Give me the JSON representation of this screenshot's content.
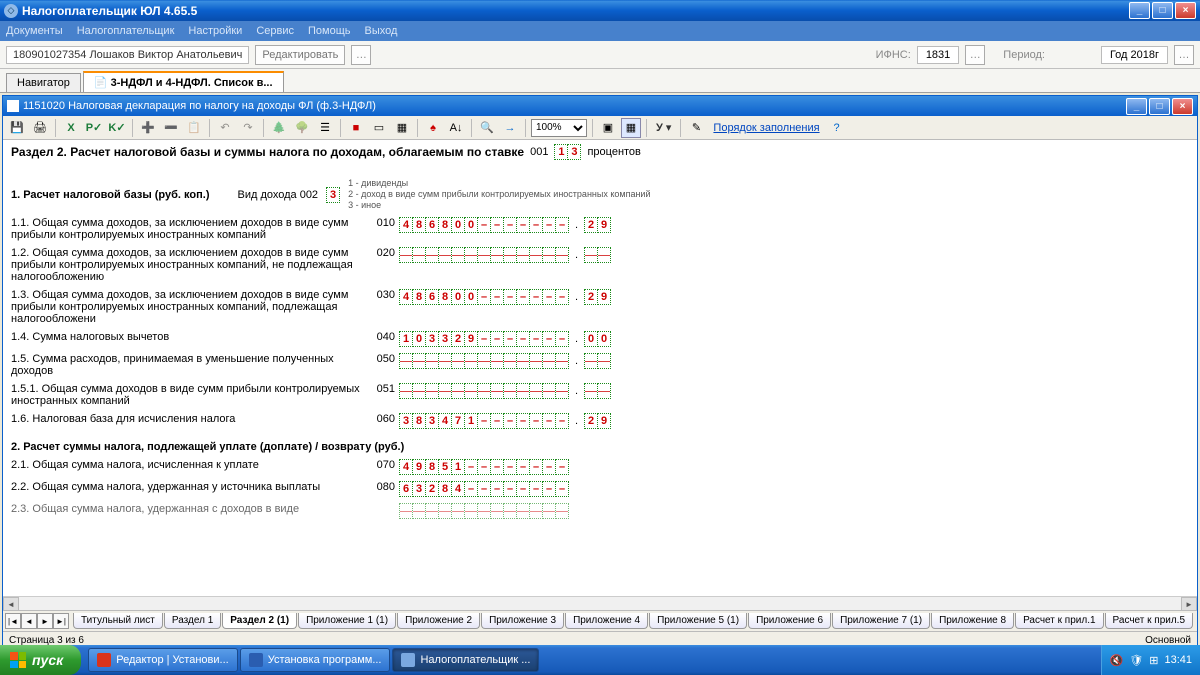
{
  "app": {
    "title": "Налогоплательщик ЮЛ 4.65.5",
    "menus": [
      "Документы",
      "Налогоплательщик",
      "Настройки",
      "Сервис",
      "Помощь",
      "Выход"
    ]
  },
  "topbar": {
    "taxpayer": "180901027354 Лошаков Виктор Анатольевич",
    "edit_placeholder": "Редактировать",
    "ifns_label": "ИФНС:",
    "ifns_value": "1831",
    "period_label": "Период:",
    "period_value": "Год 2018г"
  },
  "navtabs": {
    "navigator": "Навигатор",
    "active": "3-НДФЛ и 4-НДФЛ. Список в..."
  },
  "inner": {
    "title": "1151020 Налоговая декларация по налогу на доходы ФЛ (ф.3-НДФЛ)",
    "zoom": "100%",
    "order_link": "Порядок заполнения",
    "ulabel": "У"
  },
  "form": {
    "section_title_left": "Раздел 2. Расчет налоговой базы и суммы налога по доходам, облагаемым по ставке",
    "section_code": "001",
    "rate_digits": [
      "1",
      "3"
    ],
    "percent_label": "процентов",
    "calc1_heading": "1. Расчет налоговой базы (руб. коп.)",
    "income_type_label": "Вид дохода 002",
    "income_type_value": "3",
    "income_legend": [
      "1 - дивиденды",
      "2 - доход в виде сумм прибыли контролируемых иностранных компаний",
      "3 - иное"
    ],
    "rows": [
      {
        "label": "1.1. Общая сумма доходов, за исключением доходов в виде сумм прибыли контролируемых иностранных компаний",
        "code": "010",
        "rub": [
          "4",
          "8",
          "6",
          "8",
          "0",
          "0",
          "–",
          "–",
          "–",
          "–",
          "–",
          "–",
          "–"
        ],
        "kop": [
          "2",
          "9"
        ]
      },
      {
        "label": "1.2. Общая сумма доходов, за исключением доходов в виде сумм прибыли контролируемых иностранных компаний, не подлежащая налогообложению",
        "code": "020",
        "rub_blank": true,
        "kop_blank": true
      },
      {
        "label": "1.3. Общая сумма доходов, за исключением доходов в виде сумм прибыли контролируемых иностранных компаний, подлежащая налогообложени",
        "code": "030",
        "rub": [
          "4",
          "8",
          "6",
          "8",
          "0",
          "0",
          "–",
          "–",
          "–",
          "–",
          "–",
          "–",
          "–"
        ],
        "kop": [
          "2",
          "9"
        ]
      },
      {
        "label": "1.4. Сумма налоговых вычетов",
        "code": "040",
        "rub": [
          "1",
          "0",
          "3",
          "3",
          "2",
          "9",
          "–",
          "–",
          "–",
          "–",
          "–",
          "–",
          "–"
        ],
        "kop": [
          "0",
          "0"
        ]
      },
      {
        "label": "1.5. Сумма расходов, принимаемая в уменьшение полученных доходов",
        "code": "050",
        "rub_blank": true,
        "kop_blank": true
      },
      {
        "label": "1.5.1. Общая сумма доходов в виде сумм прибыли контролируемых иностранных компаний",
        "code": "051",
        "rub_blank": true,
        "kop_blank": true
      },
      {
        "label": "1.6. Налоговая база для исчисления налога",
        "code": "060",
        "rub": [
          "3",
          "8",
          "3",
          "4",
          "7",
          "1",
          "–",
          "–",
          "–",
          "–",
          "–",
          "–",
          "–"
        ],
        "kop": [
          "2",
          "9"
        ]
      }
    ],
    "calc2_heading": "2. Расчет суммы налога, подлежащей уплате (доплате) / возврату (руб.)",
    "rows2": [
      {
        "label": "2.1. Общая сумма налога, исчисленная к уплате",
        "code": "070",
        "rub": [
          "4",
          "9",
          "8",
          "5",
          "1",
          "–",
          "–",
          "–",
          "–",
          "–",
          "–",
          "–",
          "–"
        ]
      },
      {
        "label": "2.2. Общая сумма налога, удержанная у источника выплаты",
        "code": "080",
        "rub": [
          "6",
          "3",
          "2",
          "8",
          "4",
          "–",
          "–",
          "–",
          "–",
          "–",
          "–",
          "–",
          "–"
        ]
      },
      {
        "label": "2.3. Общая сумма налога, удержанная с доходов в виде",
        "code": "",
        "rub_blank": true,
        "partial": true
      }
    ]
  },
  "page_tabs": [
    "Титульный лист",
    "Раздел 1",
    "Раздел 2 (1)",
    "Приложение 1 (1)",
    "Приложение 2",
    "Приложение 3",
    "Приложение 4",
    "Приложение 5 (1)",
    "Приложение 6",
    "Приложение 7 (1)",
    "Приложение 8",
    "Расчет к прил.1",
    "Расчет к прил.5"
  ],
  "page_tabs_active_index": 2,
  "status": {
    "left": "Страница 3 из 6",
    "right": "Основной"
  },
  "taskbar": {
    "start": "пуск",
    "tasks": [
      {
        "label": "Редактор | Установи...",
        "color": "#d9341c"
      },
      {
        "label": "Установка программ...",
        "color": "#2a5db0"
      },
      {
        "label": "Налогоплательщик ...",
        "color": "#7aa8e0",
        "active": true
      }
    ],
    "clock": "13:41"
  },
  "colors": {
    "cell_border": "#1a8a1a",
    "digit_color": "#c00000",
    "blank_line": "#d94040"
  }
}
